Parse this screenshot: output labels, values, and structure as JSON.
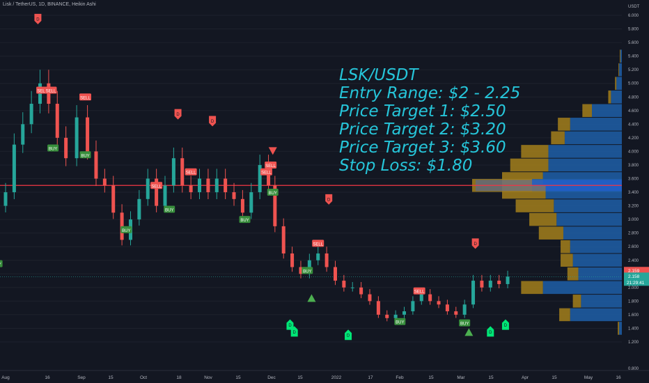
{
  "header": {
    "symbol_line": "Lisk / TetherUS, 1D, BINANCE, Heikin Ashi"
  },
  "annotation": {
    "lines": [
      "LSK/USDT",
      "Entry Range: $2 - 2.25",
      "Price Target 1: $2.50",
      "Price Target 2: $3.20",
      "Price Target 3: $3.60",
      "Stop Loss: $1.80"
    ],
    "color": "#26c6da"
  },
  "chart_data": {
    "type": "candlestick",
    "chart_style": "Heikin Ashi",
    "y_axis": {
      "unit": "USDT",
      "ticks": [
        "6.000",
        "5.800",
        "5.600",
        "5.400",
        "5.200",
        "5.000",
        "4.800",
        "4.600",
        "4.400",
        "4.200",
        "4.000",
        "3.800",
        "3.600",
        "3.400",
        "3.200",
        "3.000",
        "2.800",
        "2.600",
        "2.400",
        "2.200",
        "2.000",
        "1.800",
        "1.600",
        "1.400",
        "1.200",
        "0.800"
      ],
      "range": [
        0.8,
        6.2
      ]
    },
    "x_axis": {
      "ticks": [
        "Aug",
        "16",
        "Sep",
        "15",
        "Oct",
        "18",
        "Nov",
        "15",
        "Dec",
        "15",
        "2022",
        "17",
        "Feb",
        "15",
        "Mar",
        "15",
        "Apr",
        "15",
        "May",
        "16"
      ]
    },
    "horizontal_line": {
      "value": 3.5,
      "color": "#f23645"
    },
    "price_labels": {
      "red_label": "2.159",
      "last_price": "2.158",
      "countdown": "21:29:41"
    },
    "colors": {
      "up": "#26a69a",
      "down": "#ef5350",
      "buy": "#4caf50",
      "sell": "#ef5350",
      "d_marker": "#ef5350",
      "d_up": "#00e676",
      "vp_up": "#2962ff",
      "vp_down": "#ffb300"
    },
    "signals": [
      {
        "label": "BUY",
        "date": "2021-07-28",
        "price": 2.35
      },
      {
        "label": "SELL",
        "date": "2021-08-18",
        "price": 4.9
      },
      {
        "label": "SELL",
        "date": "2021-08-22",
        "price": 4.9
      },
      {
        "label": "BUY",
        "date": "2021-08-23",
        "price": 4.05
      },
      {
        "label": "SELL",
        "date": "2021-09-07",
        "price": 4.8
      },
      {
        "label": "BUY",
        "date": "2021-09-07",
        "price": 3.95
      },
      {
        "label": "BUY",
        "date": "2021-09-26",
        "price": 2.85
      },
      {
        "label": "SELL",
        "date": "2021-10-10",
        "price": 3.5
      },
      {
        "label": "BUY",
        "date": "2021-10-16",
        "price": 3.15
      },
      {
        "label": "SELL",
        "date": "2021-10-26",
        "price": 3.7
      },
      {
        "label": "BUY",
        "date": "2021-11-20",
        "price": 3.0
      },
      {
        "label": "SELL",
        "date": "2021-11-30",
        "price": 3.7
      },
      {
        "label": "SELL",
        "date": "2021-12-02",
        "price": 3.8
      },
      {
        "label": "BUY",
        "date": "2021-12-03",
        "price": 3.4
      },
      {
        "label": "BUY",
        "date": "2021-12-19",
        "price": 2.25
      },
      {
        "label": "SELL",
        "date": "2021-12-24",
        "price": 2.65
      },
      {
        "label": "SELL",
        "date": "2022-02-09",
        "price": 1.95
      },
      {
        "label": "BUY",
        "date": "2022-01-31",
        "price": 1.5
      },
      {
        "label": "BUY",
        "date": "2022-03-02",
        "price": 1.48
      }
    ],
    "d_markers": [
      {
        "date": "2021-08-16",
        "price": 5.95,
        "dir": "down"
      },
      {
        "date": "2021-10-20",
        "price": 4.55,
        "dir": "down"
      },
      {
        "date": "2021-11-05",
        "price": 4.45,
        "dir": "down"
      },
      {
        "date": "2021-12-29",
        "price": 3.3,
        "dir": "down"
      },
      {
        "date": "2022-03-07",
        "price": 2.65,
        "dir": "down"
      },
      {
        "date": "2021-12-11",
        "price": 1.45,
        "dir": "up"
      },
      {
        "date": "2021-12-13",
        "price": 1.35,
        "dir": "up"
      },
      {
        "date": "2022-01-07",
        "price": 1.3,
        "dir": "up"
      },
      {
        "date": "2022-03-14",
        "price": 1.35,
        "dir": "up"
      },
      {
        "date": "2022-03-21",
        "price": 1.45,
        "dir": "up"
      }
    ],
    "triangles": [
      {
        "date": "2021-12-03",
        "price": 4.0,
        "dir": "down"
      },
      {
        "date": "2021-12-21",
        "price": 1.85,
        "dir": "up"
      },
      {
        "date": "2022-03-04",
        "price": 1.35,
        "dir": "up"
      }
    ],
    "series": [
      {
        "date": "2021-07-24",
        "open": 2.3,
        "close": 2.5
      },
      {
        "date": "2021-07-28",
        "open": 2.5,
        "close": 3.2
      },
      {
        "date": "2021-08-01",
        "open": 3.2,
        "close": 3.4
      },
      {
        "date": "2021-08-05",
        "open": 3.4,
        "close": 4.1
      },
      {
        "date": "2021-08-09",
        "open": 4.1,
        "close": 4.4
      },
      {
        "date": "2021-08-13",
        "open": 4.4,
        "close": 4.7
      },
      {
        "date": "2021-08-17",
        "open": 4.7,
        "close": 5.0
      },
      {
        "date": "2021-08-21",
        "open": 5.0,
        "close": 4.7
      },
      {
        "date": "2021-08-25",
        "open": 4.7,
        "close": 4.2
      },
      {
        "date": "2021-08-29",
        "open": 4.2,
        "close": 3.9
      },
      {
        "date": "2021-09-03",
        "open": 3.9,
        "close": 4.5
      },
      {
        "date": "2021-09-08",
        "open": 4.5,
        "close": 4.0
      },
      {
        "date": "2021-09-12",
        "open": 4.0,
        "close": 3.6
      },
      {
        "date": "2021-09-16",
        "open": 3.6,
        "close": 3.5
      },
      {
        "date": "2021-09-20",
        "open": 3.5,
        "close": 3.1
      },
      {
        "date": "2021-09-24",
        "open": 3.1,
        "close": 2.7
      },
      {
        "date": "2021-09-28",
        "open": 2.7,
        "close": 3.0
      },
      {
        "date": "2021-10-02",
        "open": 3.0,
        "close": 3.3
      },
      {
        "date": "2021-10-06",
        "open": 3.3,
        "close": 3.6
      },
      {
        "date": "2021-10-10",
        "open": 3.6,
        "close": 3.2
      },
      {
        "date": "2021-10-14",
        "open": 3.2,
        "close": 3.5
      },
      {
        "date": "2021-10-18",
        "open": 3.5,
        "close": 3.9
      },
      {
        "date": "2021-10-22",
        "open": 3.9,
        "close": 3.5
      },
      {
        "date": "2021-10-26",
        "open": 3.5,
        "close": 3.4
      },
      {
        "date": "2021-10-30",
        "open": 3.4,
        "close": 3.6
      },
      {
        "date": "2021-11-03",
        "open": 3.6,
        "close": 3.4
      },
      {
        "date": "2021-11-07",
        "open": 3.4,
        "close": 3.6
      },
      {
        "date": "2021-11-11",
        "open": 3.6,
        "close": 3.4
      },
      {
        "date": "2021-11-15",
        "open": 3.4,
        "close": 3.3
      },
      {
        "date": "2021-11-19",
        "open": 3.3,
        "close": 3.1
      },
      {
        "date": "2021-11-23",
        "open": 3.1,
        "close": 3.4
      },
      {
        "date": "2021-11-27",
        "open": 3.4,
        "close": 3.8
      },
      {
        "date": "2021-12-01",
        "open": 3.8,
        "close": 3.5
      },
      {
        "date": "2021-12-04",
        "open": 3.5,
        "close": 2.9
      },
      {
        "date": "2021-12-08",
        "open": 2.9,
        "close": 2.5
      },
      {
        "date": "2021-12-12",
        "open": 2.5,
        "close": 2.3
      },
      {
        "date": "2021-12-16",
        "open": 2.3,
        "close": 2.2
      },
      {
        "date": "2021-12-20",
        "open": 2.2,
        "close": 2.4
      },
      {
        "date": "2021-12-24",
        "open": 2.4,
        "close": 2.5
      },
      {
        "date": "2021-12-28",
        "open": 2.5,
        "close": 2.3
      },
      {
        "date": "2022-01-01",
        "open": 2.3,
        "close": 2.1
      },
      {
        "date": "2022-01-05",
        "open": 2.1,
        "close": 2.0
      },
      {
        "date": "2022-01-09",
        "open": 2.0,
        "close": 2.0
      },
      {
        "date": "2022-01-13",
        "open": 2.0,
        "close": 1.9
      },
      {
        "date": "2022-01-17",
        "open": 1.9,
        "close": 1.8
      },
      {
        "date": "2022-01-21",
        "open": 1.8,
        "close": 1.6
      },
      {
        "date": "2022-01-25",
        "open": 1.6,
        "close": 1.55
      },
      {
        "date": "2022-01-29",
        "open": 1.55,
        "close": 1.6
      },
      {
        "date": "2022-02-02",
        "open": 1.6,
        "close": 1.65
      },
      {
        "date": "2022-02-06",
        "open": 1.65,
        "close": 1.8
      },
      {
        "date": "2022-02-10",
        "open": 1.8,
        "close": 1.9
      },
      {
        "date": "2022-02-14",
        "open": 1.9,
        "close": 1.8
      },
      {
        "date": "2022-02-18",
        "open": 1.8,
        "close": 1.75
      },
      {
        "date": "2022-02-22",
        "open": 1.75,
        "close": 1.65
      },
      {
        "date": "2022-02-26",
        "open": 1.65,
        "close": 1.6
      },
      {
        "date": "2022-03-02",
        "open": 1.6,
        "close": 1.75
      },
      {
        "date": "2022-03-06",
        "open": 1.75,
        "close": 2.1
      },
      {
        "date": "2022-03-10",
        "open": 2.1,
        "close": 2.0
      },
      {
        "date": "2022-03-14",
        "open": 2.0,
        "close": 2.1
      },
      {
        "date": "2022-03-18",
        "open": 2.1,
        "close": 2.05
      },
      {
        "date": "2022-03-22",
        "open": 2.05,
        "close": 2.16
      }
    ],
    "volume_profile": [
      {
        "price": 5.4,
        "up": 0.01,
        "down": 0.005
      },
      {
        "price": 5.2,
        "up": 0.02,
        "down": 0.005
      },
      {
        "price": 5.0,
        "up": 0.04,
        "down": 0.01
      },
      {
        "price": 4.8,
        "up": 0.08,
        "down": 0.02
      },
      {
        "price": 4.6,
        "up": 0.22,
        "down": 0.07
      },
      {
        "price": 4.4,
        "up": 0.38,
        "down": 0.09
      },
      {
        "price": 4.2,
        "up": 0.42,
        "down": 0.1
      },
      {
        "price": 4.0,
        "up": 0.54,
        "down": 0.2
      },
      {
        "price": 3.8,
        "up": 0.54,
        "down": 0.28
      },
      {
        "price": 3.6,
        "up": 0.58,
        "down": 0.3
      },
      {
        "price": 3.5,
        "up": 0.66,
        "down": 0.44
      },
      {
        "price": 3.4,
        "up": 0.56,
        "down": 0.32
      },
      {
        "price": 3.2,
        "up": 0.5,
        "down": 0.28
      },
      {
        "price": 3.0,
        "up": 0.48,
        "down": 0.2
      },
      {
        "price": 2.8,
        "up": 0.43,
        "down": 0.18
      },
      {
        "price": 2.6,
        "up": 0.38,
        "down": 0.07
      },
      {
        "price": 2.4,
        "up": 0.36,
        "down": 0.09
      },
      {
        "price": 2.2,
        "up": 0.32,
        "down": 0.08
      },
      {
        "price": 2.0,
        "up": 0.58,
        "down": 0.16
      },
      {
        "price": 1.8,
        "up": 0.3,
        "down": 0.06
      },
      {
        "price": 1.6,
        "up": 0.38,
        "down": 0.08
      },
      {
        "price": 1.4,
        "up": 0.02,
        "down": 0.01
      }
    ]
  }
}
